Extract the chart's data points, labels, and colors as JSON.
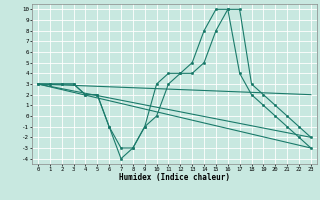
{
  "title": "",
  "xlabel": "Humidex (Indice chaleur)",
  "xlim": [
    -0.5,
    23.5
  ],
  "ylim": [
    -4.5,
    10.5
  ],
  "xticks": [
    0,
    1,
    2,
    3,
    4,
    5,
    6,
    7,
    8,
    9,
    10,
    11,
    12,
    13,
    14,
    15,
    16,
    17,
    18,
    19,
    20,
    21,
    22,
    23
  ],
  "yticks": [
    -4,
    -3,
    -2,
    -1,
    0,
    1,
    2,
    3,
    4,
    5,
    6,
    7,
    8,
    9,
    10
  ],
  "bg_color": "#c8e8e0",
  "grid_color": "#ffffff",
  "line_color": "#1a7a6a",
  "line1_x": [
    0,
    1,
    2,
    3,
    4,
    5,
    6,
    7,
    8,
    9,
    10,
    11,
    12,
    13,
    14,
    15,
    16,
    17,
    18,
    19,
    20,
    21,
    22,
    23
  ],
  "line1_y": [
    3,
    3,
    3,
    3,
    2,
    2,
    -1,
    -4,
    -3,
    -1,
    3,
    4,
    4,
    5,
    8,
    10,
    10,
    4,
    2,
    1,
    0,
    -1,
    -2,
    -3
  ],
  "line2_x": [
    0,
    1,
    2,
    3,
    4,
    5,
    6,
    7,
    8,
    9,
    10,
    11,
    12,
    13,
    14,
    15,
    16,
    17,
    18,
    19,
    20,
    21,
    22,
    23
  ],
  "line2_y": [
    3,
    3,
    3,
    3,
    2,
    2,
    -1,
    -3,
    -3,
    -1,
    0,
    3,
    4,
    4,
    5,
    8,
    10,
    10,
    3,
    2,
    1,
    0,
    -1,
    -2
  ],
  "line3_x": [
    0,
    23
  ],
  "line3_y": [
    3,
    -2
  ],
  "line4_x": [
    0,
    23
  ],
  "line4_y": [
    3,
    -3
  ],
  "line5_x": [
    0,
    23
  ],
  "line5_y": [
    3,
    2
  ]
}
